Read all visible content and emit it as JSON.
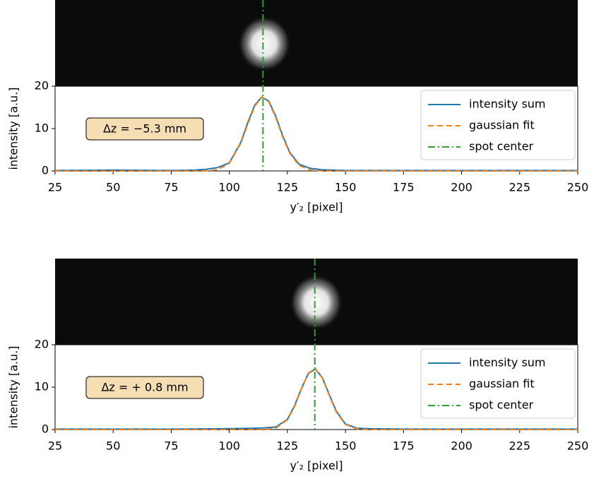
{
  "chart_data": [
    {
      "type": "line",
      "annotation": "Δz = −5.3 mm",
      "xlabel": "y′₂ [pixel]",
      "ylabel": "intensity [a.u.]",
      "x": [
        25,
        50,
        75,
        85,
        90,
        95,
        100,
        105,
        108,
        111,
        114,
        117,
        120,
        123,
        126,
        130,
        135,
        140,
        150,
        175,
        200,
        225,
        250
      ],
      "series": [
        {
          "name": "intensity sum",
          "color": "#1f77b4",
          "values": [
            0.1,
            0.2,
            0.1,
            0.2,
            0.4,
            0.8,
            1.9,
            6.8,
            11.5,
            15.6,
            17.4,
            16.5,
            12.9,
            8.3,
            4.4,
            1.6,
            0.6,
            0.3,
            0.1,
            0.1,
            0.1,
            0.1,
            0.1
          ]
        },
        {
          "name": "gaussian fit",
          "color": "#ff7f0e",
          "values": [
            0,
            0,
            0,
            0,
            0.03,
            0.29,
            1.8,
            6.6,
            11.1,
            15.3,
            17.5,
            16.3,
            12.6,
            8.0,
            4.2,
            1.3,
            0.2,
            0.03,
            0,
            0,
            0,
            0,
            0
          ]
        },
        {
          "name": "spot center",
          "color": "#2ca02c",
          "center": 114.5
        }
      ],
      "xlim": [
        25,
        250
      ],
      "xticks": [
        25,
        50,
        75,
        100,
        125,
        150,
        175,
        200,
        225,
        250
      ],
      "ylim": [
        0,
        20
      ],
      "yticks": [
        0,
        10,
        20
      ],
      "legend": "upper right"
    },
    {
      "type": "line",
      "annotation": "Δz = + 0.8 mm",
      "xlabel": "y′₂ [pixel]",
      "ylabel": "intensity [a.u.]",
      "x": [
        25,
        50,
        75,
        100,
        110,
        115,
        120,
        125,
        128,
        131,
        134,
        137,
        140,
        143,
        146,
        150,
        155,
        160,
        175,
        200,
        225,
        250
      ],
      "series": [
        {
          "name": "intensity sum",
          "color": "#1f77b4",
          "values": [
            0.1,
            0.1,
            0.1,
            0.2,
            0.3,
            0.4,
            0.6,
            2.4,
            5.5,
            9.6,
            13.2,
            14.3,
            12.3,
            8.3,
            4.4,
            1.3,
            0.3,
            0.2,
            0.1,
            0.1,
            0.1,
            0.1
          ]
        },
        {
          "name": "gaussian fit",
          "color": "#ff7f0e",
          "values": [
            0,
            0,
            0,
            0,
            0,
            0.01,
            0.32,
            2.3,
            5.3,
            9.5,
            13.3,
            14.4,
            12.2,
            8.1,
            4.2,
            1.2,
            0.13,
            0,
            0,
            0,
            0,
            0
          ]
        },
        {
          "name": "spot center",
          "color": "#2ca02c",
          "center": 136.8
        }
      ],
      "xlim": [
        25,
        250
      ],
      "xticks": [
        25,
        50,
        75,
        100,
        125,
        150,
        175,
        200,
        225,
        250
      ],
      "ylim": [
        0,
        20
      ],
      "yticks": [
        0,
        10,
        20
      ],
      "legend": "upper right"
    }
  ]
}
